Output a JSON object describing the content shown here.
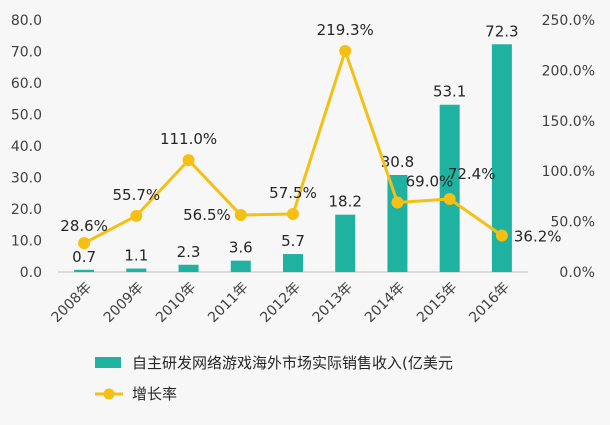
{
  "chart_data": {
    "type": "bar+line",
    "categories": [
      "2008年",
      "2009年",
      "2010年",
      "2011年",
      "2012年",
      "2013年",
      "2014年",
      "2015年",
      "2016年"
    ],
    "series": [
      {
        "name": "自主研发网络游戏海外市场实际销售收入(亿美元",
        "type": "bar",
        "axis": "left",
        "color": "#20b2a0",
        "values": [
          0.7,
          1.1,
          2.3,
          3.6,
          5.7,
          18.2,
          30.8,
          53.1,
          72.3
        ],
        "labels": [
          "0.7",
          "1.1",
          "2.3",
          "3.6",
          "5.7",
          "18.2",
          "30.8",
          "53.1",
          "72.3"
        ]
      },
      {
        "name": "增长率",
        "type": "line",
        "axis": "right",
        "color": "#f5bf14",
        "values": [
          28.6,
          55.7,
          111.0,
          56.5,
          57.5,
          219.3,
          69.0,
          72.4,
          36.2
        ],
        "labels": [
          "28.6%",
          "55.7%",
          "111.0%",
          "56.5%",
          "57.5%",
          "219.3%",
          "69.0%",
          "72.4%",
          "36.2%"
        ]
      }
    ],
    "y_left": {
      "min": 0,
      "max": 80,
      "ticks": [
        "0.0",
        "10.0",
        "20.0",
        "30.0",
        "40.0",
        "50.0",
        "60.0",
        "70.0",
        "80.0"
      ]
    },
    "y_right": {
      "min": 0,
      "max": 250,
      "unit": "%",
      "ticks": [
        "0.0%",
        "50.0%",
        "100.0%",
        "150.0%",
        "200.0%",
        "250.0%"
      ]
    },
    "grid": false,
    "legend_position": "bottom-left"
  }
}
